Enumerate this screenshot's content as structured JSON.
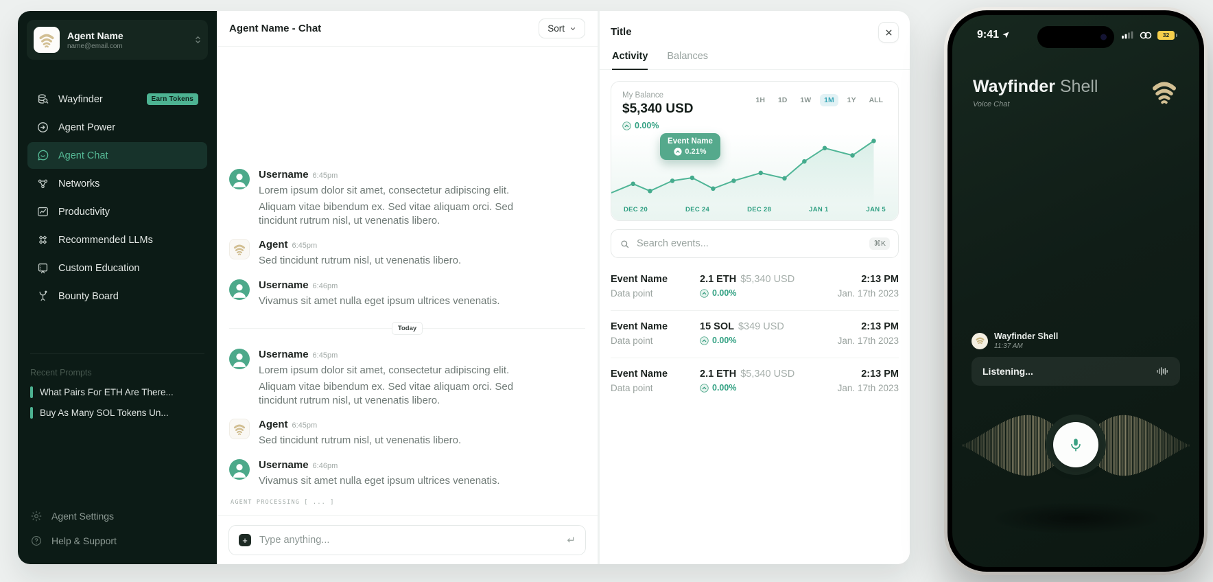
{
  "colors": {
    "accent_teal": "#4db392",
    "sidebar_bg": "#0c1b16",
    "chart_line": "#4fb596",
    "tooltip_bg": "#55a98c",
    "logo_tan": "#d2bf93",
    "battery_yellow": "#f6cf4b",
    "active_range": "#3ba8b8"
  },
  "sidebar": {
    "profile": {
      "name": "Agent Name",
      "email": "name@email.com"
    },
    "nav": [
      {
        "label": "Wayfinder",
        "badge": "Earn Tokens"
      },
      {
        "label": "Agent Power"
      },
      {
        "label": "Agent Chat",
        "active": true
      },
      {
        "label": "Networks"
      },
      {
        "label": "Productivity"
      },
      {
        "label": "Recommended LLMs"
      },
      {
        "label": "Custom Education"
      },
      {
        "label": "Bounty Board"
      }
    ],
    "recent_prompts": {
      "title": "Recent Prompts",
      "items": [
        "What Pairs For ETH Are There...",
        "Buy As Many SOL Tokens Un..."
      ]
    },
    "footer": [
      {
        "label": "Agent Settings"
      },
      {
        "label": "Help & Support"
      }
    ]
  },
  "chat": {
    "header": {
      "title": "Agent Name - Chat",
      "sort_label": "Sort"
    },
    "date_divider": "Today",
    "messages": [
      {
        "name": "Username",
        "time": "6:45pm",
        "avatar": "user",
        "lines": [
          "Lorem ipsum dolor sit amet, consectetur adipiscing elit.",
          "Aliquam vitae bibendum ex. Sed vitae aliquam orci. Sed tincidunt rutrum nisl, ut venenatis libero."
        ]
      },
      {
        "name": "Agent",
        "time": "6:45pm",
        "avatar": "agent",
        "lines": [
          "Sed tincidunt rutrum nisl, ut venenatis libero."
        ]
      },
      {
        "name": "Username",
        "time": "6:46pm",
        "avatar": "user",
        "lines": [
          "Vivamus sit amet nulla eget ipsum ultrices venenatis."
        ]
      }
    ],
    "processing_text": "AGENT PROCESSING [ ... ]",
    "input": {
      "placeholder": "Type anything...",
      "send_glyph": "↵"
    }
  },
  "panel": {
    "title": "Title",
    "tabs": [
      {
        "label": "Activity"
      },
      {
        "label": "Balances"
      }
    ],
    "active_tab": "Activity",
    "balance": {
      "label": "My Balance",
      "value": "$5,340 USD",
      "change": "0.00%"
    },
    "search": {
      "placeholder": "Search events...",
      "shortcut": "⌘K"
    },
    "events": [
      {
        "name": "Event Name",
        "sub": "Data point",
        "amount": "2.1 ETH",
        "usd": "$5,340 USD",
        "change": "0.00%",
        "time": "2:13 PM",
        "date": "Jan. 17th 2023"
      },
      {
        "name": "Event Name",
        "sub": "Data point",
        "amount": "15 SOL",
        "usd": "$349 USD",
        "change": "0.00%",
        "time": "2:13 PM",
        "date": "Jan. 17th 2023"
      },
      {
        "name": "Event Name",
        "sub": "Data point",
        "amount": "2.1 ETH",
        "usd": "$5,340 USD",
        "change": "0.00%",
        "time": "2:13 PM",
        "date": "Jan. 17th 2023"
      }
    ]
  },
  "chart_data": {
    "type": "line",
    "title": "My Balance",
    "current_value": "$5,340 USD",
    "change_pct": "0.00%",
    "ranges": [
      "1H",
      "1D",
      "1W",
      "1M",
      "1Y",
      "ALL"
    ],
    "selected_range": "1M",
    "x_tick_labels": [
      "DEC 20",
      "DEC 24",
      "DEC 28",
      "JAN 1",
      "JAN 5"
    ],
    "annotation": {
      "label": "Event Name",
      "change": "0.21%"
    },
    "points_norm": [
      [
        0.0,
        0.92
      ],
      [
        0.076,
        0.77
      ],
      [
        0.135,
        0.89
      ],
      [
        0.213,
        0.72
      ],
      [
        0.282,
        0.67
      ],
      [
        0.355,
        0.85
      ],
      [
        0.427,
        0.72
      ],
      [
        0.521,
        0.59
      ],
      [
        0.604,
        0.68
      ],
      [
        0.673,
        0.4
      ],
      [
        0.744,
        0.18
      ],
      [
        0.841,
        0.3
      ],
      [
        0.915,
        0.06
      ]
    ],
    "ylim_note": "no y-axis labels shown; values normalized 0-1 top-to-bottom",
    "grid": false,
    "legend": false
  },
  "phone": {
    "status": {
      "time": "9:41",
      "battery_pct": "32"
    },
    "header": {
      "title_primary": "Wayfinder",
      "title_secondary": "Shell",
      "subtitle": "Voice Chat"
    },
    "message": {
      "sender": "Wayfinder Shell",
      "time": "11:37 AM"
    },
    "listening_label": "Listening..."
  }
}
